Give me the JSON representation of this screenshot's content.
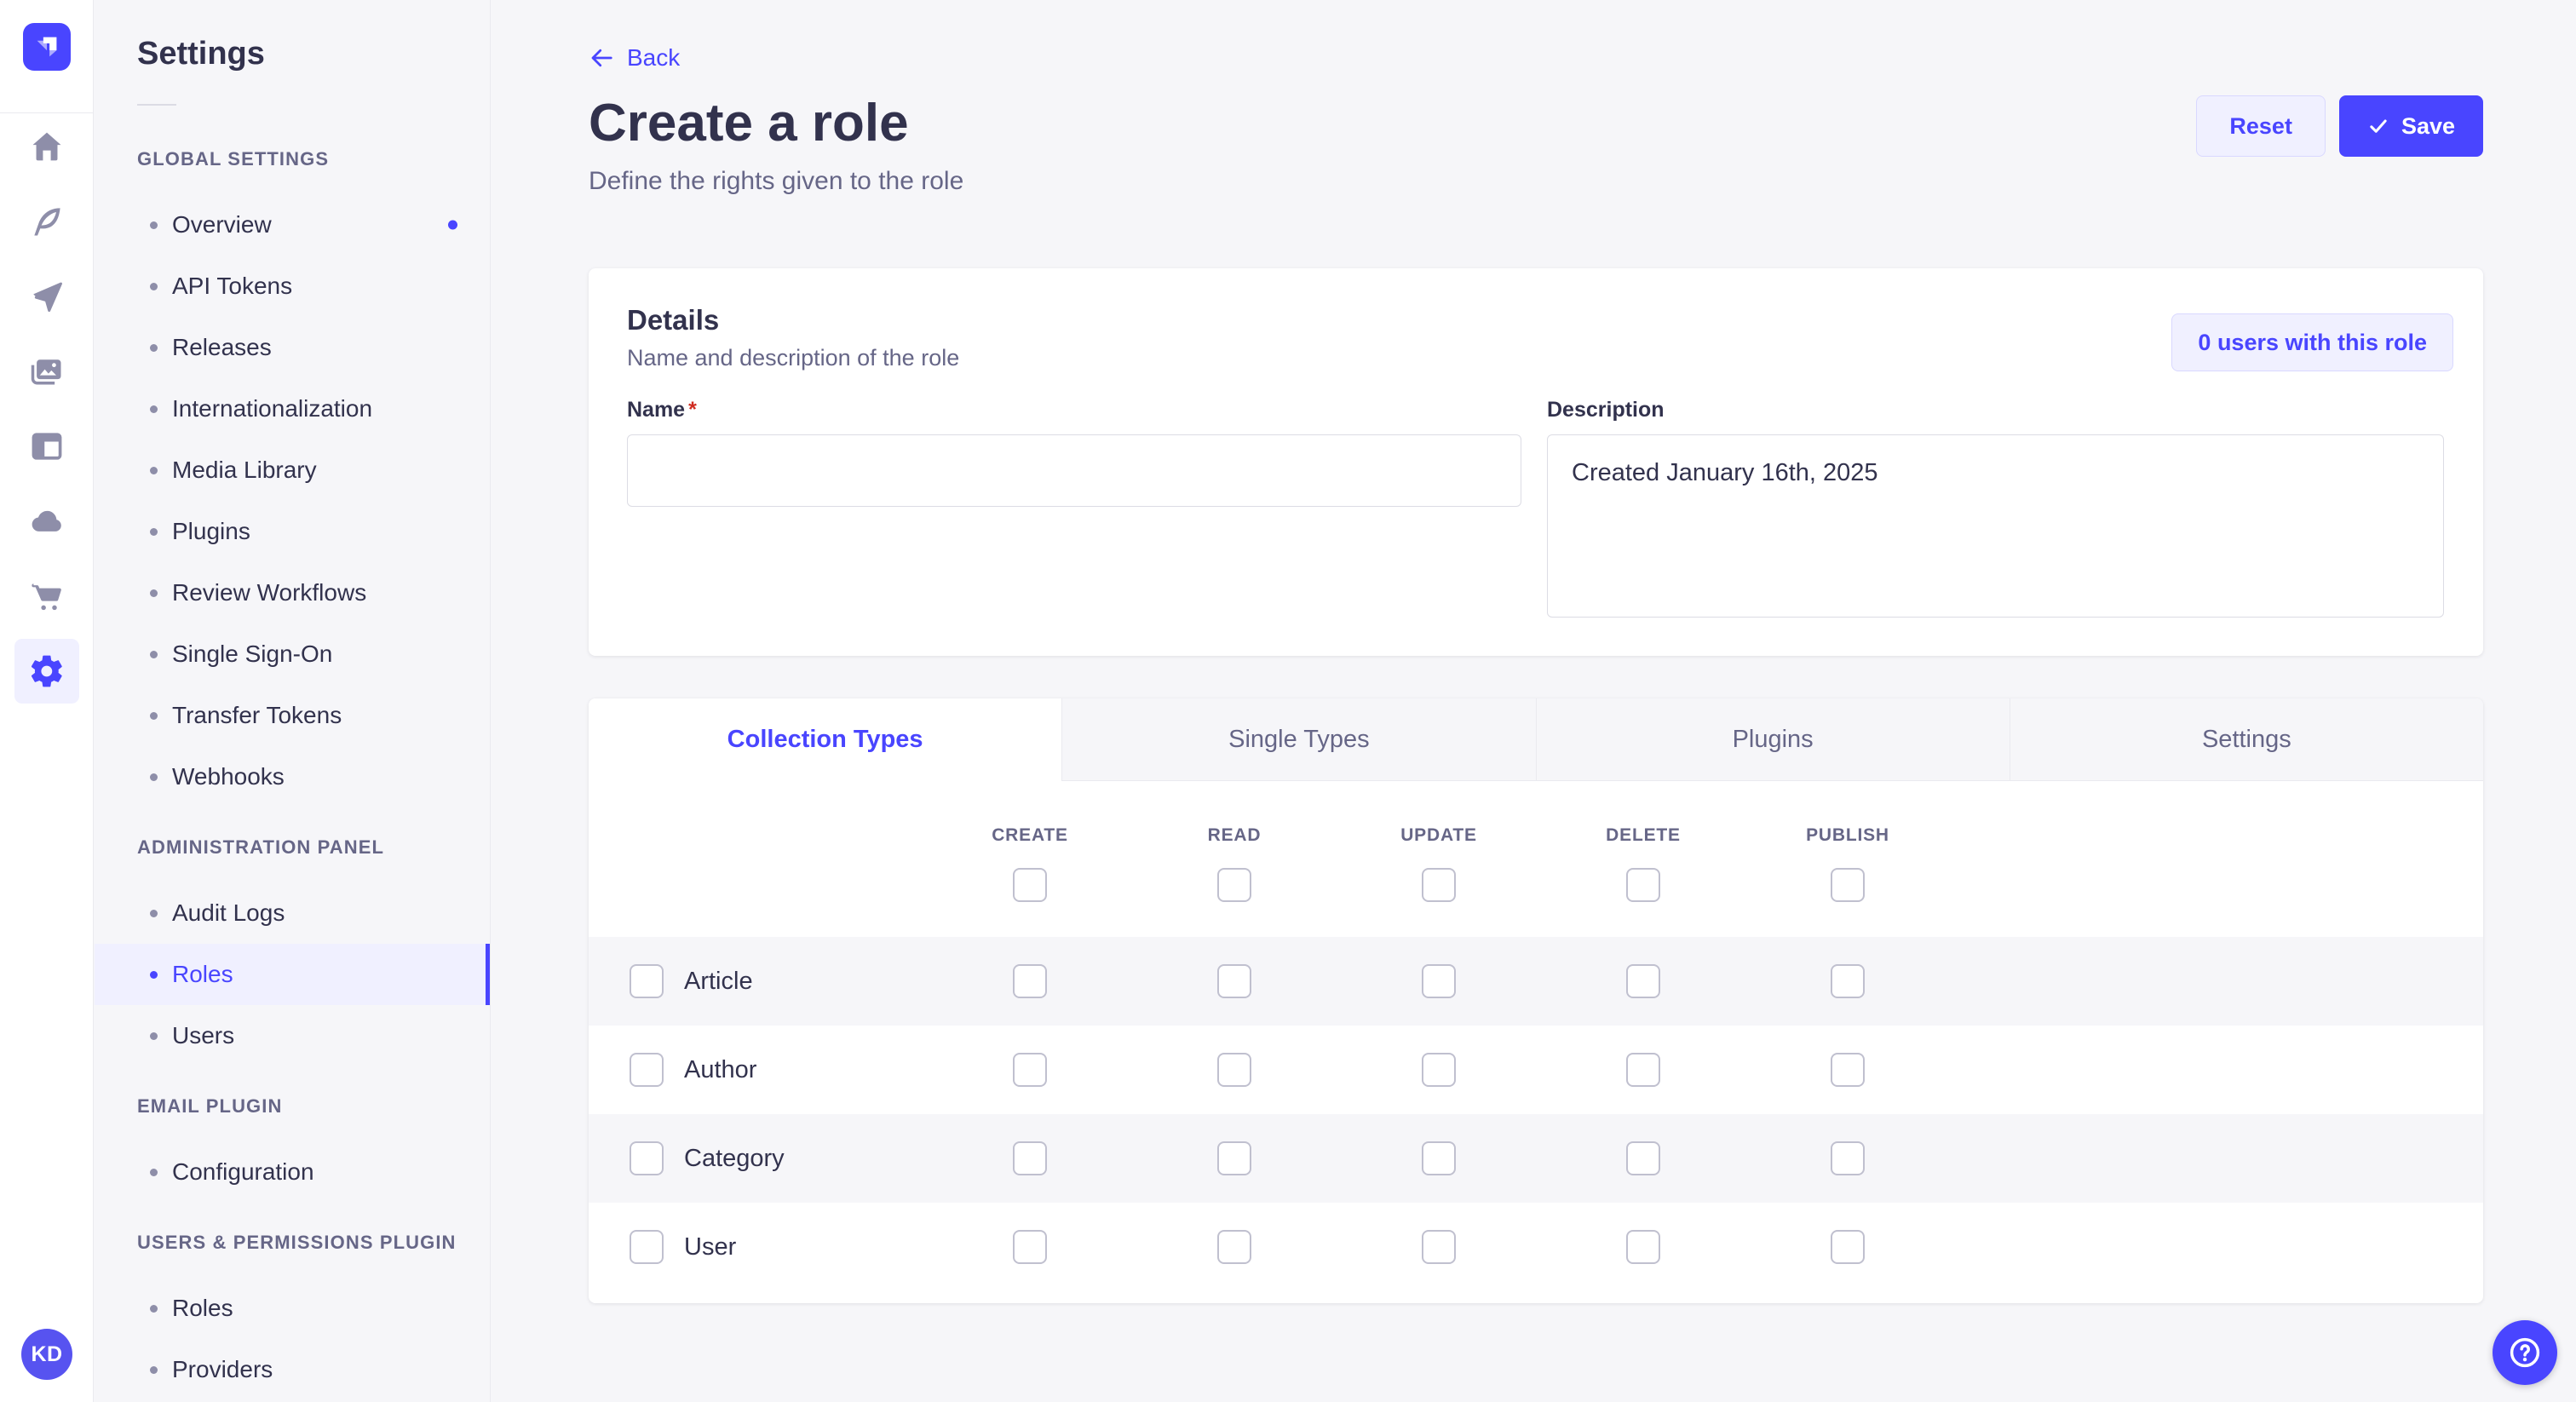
{
  "colors": {
    "primary": "#4945FF",
    "primary_light_bg": "#F0F0FF",
    "primary_border": "#D9D8FF",
    "text_dark": "#32324D",
    "text_muted": "#666687",
    "page_bg": "#F6F6F9",
    "row_alt_bg": "#F6F6F9",
    "required_red": "#D02B20"
  },
  "rail": {
    "icons": [
      "home-icon",
      "feather-icon",
      "paper-plane-icon",
      "media-icon",
      "layout-icon",
      "cloud-icon",
      "cart-icon",
      "settings-icon"
    ],
    "active_icon": "settings-icon",
    "avatar_initials": "KD"
  },
  "sidebar": {
    "title": "Settings",
    "sections": [
      {
        "label": "GLOBAL SETTINGS",
        "items": [
          {
            "label": "Overview",
            "notification": true
          },
          {
            "label": "API Tokens"
          },
          {
            "label": "Releases"
          },
          {
            "label": "Internationalization"
          },
          {
            "label": "Media Library"
          },
          {
            "label": "Plugins"
          },
          {
            "label": "Review Workflows"
          },
          {
            "label": "Single Sign-On"
          },
          {
            "label": "Transfer Tokens"
          },
          {
            "label": "Webhooks"
          }
        ]
      },
      {
        "label": "ADMINISTRATION PANEL",
        "items": [
          {
            "label": "Audit Logs"
          },
          {
            "label": "Roles",
            "active": true
          },
          {
            "label": "Users"
          }
        ]
      },
      {
        "label": "EMAIL PLUGIN",
        "items": [
          {
            "label": "Configuration"
          }
        ]
      },
      {
        "label": "USERS & PERMISSIONS PLUGIN",
        "items": [
          {
            "label": "Roles"
          },
          {
            "label": "Providers"
          }
        ]
      }
    ]
  },
  "header": {
    "back_label": "Back",
    "title": "Create a role",
    "subtitle": "Define the rights given to the role",
    "reset_label": "Reset",
    "save_label": "Save"
  },
  "details": {
    "title": "Details",
    "subtitle": "Name and description of the role",
    "users_badge": "0 users with this role",
    "name_label": "Name",
    "required_marker": "*",
    "name_value": "",
    "description_label": "Description",
    "description_value": "Created January 16th, 2025"
  },
  "tabs": [
    {
      "label": "Collection Types",
      "active": true
    },
    {
      "label": "Single Types",
      "active": false
    },
    {
      "label": "Plugins",
      "active": false
    },
    {
      "label": "Settings",
      "active": false
    }
  ],
  "permissions": {
    "columns": [
      "CREATE",
      "READ",
      "UPDATE",
      "DELETE",
      "PUBLISH"
    ],
    "rows": [
      {
        "label": "Article",
        "checked": [
          false,
          false,
          false,
          false,
          false
        ]
      },
      {
        "label": "Author",
        "checked": [
          false,
          false,
          false,
          false,
          false
        ]
      },
      {
        "label": "Category",
        "checked": [
          false,
          false,
          false,
          false,
          false
        ]
      },
      {
        "label": "User",
        "checked": [
          false,
          false,
          false,
          false,
          false
        ]
      }
    ]
  }
}
